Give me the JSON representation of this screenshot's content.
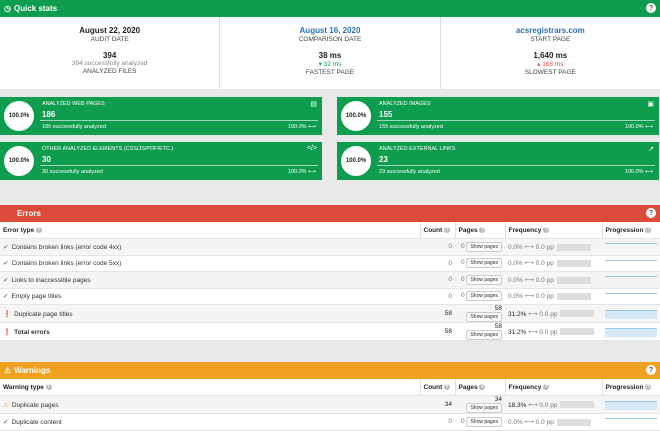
{
  "quick": {
    "title": "Quick stats",
    "audit_date": "August 22, 2020",
    "audit_label": "AUDIT DATE",
    "comparison_date": "August 16, 2020",
    "comparison_label": "COMPARISON DATE",
    "start_page": "acsregistrars.com",
    "start_label": "START PAGE",
    "files": "394",
    "files_sub": "394 successfully analyzed",
    "files_label": "ANALYZED FILES",
    "fastest": "38 ms",
    "fastest_delta": "▾ 32 ms",
    "fastest_label": "FASTEST PAGE",
    "slowest": "1,640 ms",
    "slowest_delta": "▴ 168 ms",
    "slowest_label": "SLOWEST PAGE"
  },
  "cards": [
    {
      "label": "ANALYZED WEB PAGES",
      "value": "186",
      "success": "186 successfully analyzed",
      "pct": "100.0%",
      "circle": "100.0%",
      "icon": "file-icon"
    },
    {
      "label": "ANALYZED IMAGES",
      "value": "155",
      "success": "155 successfully analyzed",
      "pct": "100.0%",
      "circle": "100.0%",
      "icon": "image-icon"
    },
    {
      "label": "OTHER ANALYZED ELEMENTS (CSS/JS/PDF/ETC.)",
      "value": "30",
      "success": "30 successfully analyzed",
      "pct": "100.0%",
      "circle": "100.0%",
      "icon": "code-icon"
    },
    {
      "label": "ANALYZED EXTERNAL LINKS",
      "value": "23",
      "success": "23 successfully analyzed",
      "pct": "100.0%",
      "circle": "100.0%",
      "icon": "external-link-icon"
    }
  ],
  "errors": {
    "title": "Errors",
    "headers": {
      "type": "Error type",
      "count": "Count",
      "pages": "Pages",
      "freq": "Frequency",
      "prog": "Progression"
    },
    "rows": [
      {
        "name": "Contains broken links (error code 4xx)",
        "count": "0",
        "pages": "0",
        "btn": "Show pages",
        "freq": "0.0%",
        "delta": "⟷ 0.0 pp"
      },
      {
        "name": "Contains broken links (error code 5xx)",
        "count": "0",
        "pages": "0",
        "btn": "Show pages",
        "freq": "0.0%",
        "delta": "⟷ 0.0 pp"
      },
      {
        "name": "Links to inaccessible pages",
        "count": "0",
        "pages": "0",
        "btn": "Show pages",
        "freq": "0.0%",
        "delta": "⟷ 0.0 pp"
      },
      {
        "name": "Empty page titles",
        "count": "0",
        "pages": "0",
        "btn": "Show pages",
        "freq": "0.0%",
        "delta": "⟷ 0.0 pp"
      },
      {
        "name": "Duplicate page titles",
        "count": "58",
        "pages": "58",
        "btn": "Show pages",
        "freq": "31.2%",
        "delta": "⟷ 0.0 pp"
      },
      {
        "name": "Total errors",
        "count": "58",
        "pages": "58",
        "btn": "Show pages",
        "freq": "31.2%",
        "delta": "⟷ 0.0 pp"
      }
    ]
  },
  "warnings": {
    "title": "Warnings",
    "headers": {
      "type": "Warning type",
      "count": "Count",
      "pages": "Pages",
      "freq": "Frequency",
      "prog": "Progression"
    },
    "rows": [
      {
        "name": "Duplicate pages",
        "count": "34",
        "pages": "34",
        "btn": "Show pages",
        "freq": "18.3%",
        "delta": "⟷ 0.0 pp"
      },
      {
        "name": "Duplicate content",
        "count": "0",
        "pages": "0",
        "btn": "Show pages",
        "freq": "0.0%",
        "delta": "⟷ 0.0 pp"
      }
    ]
  }
}
